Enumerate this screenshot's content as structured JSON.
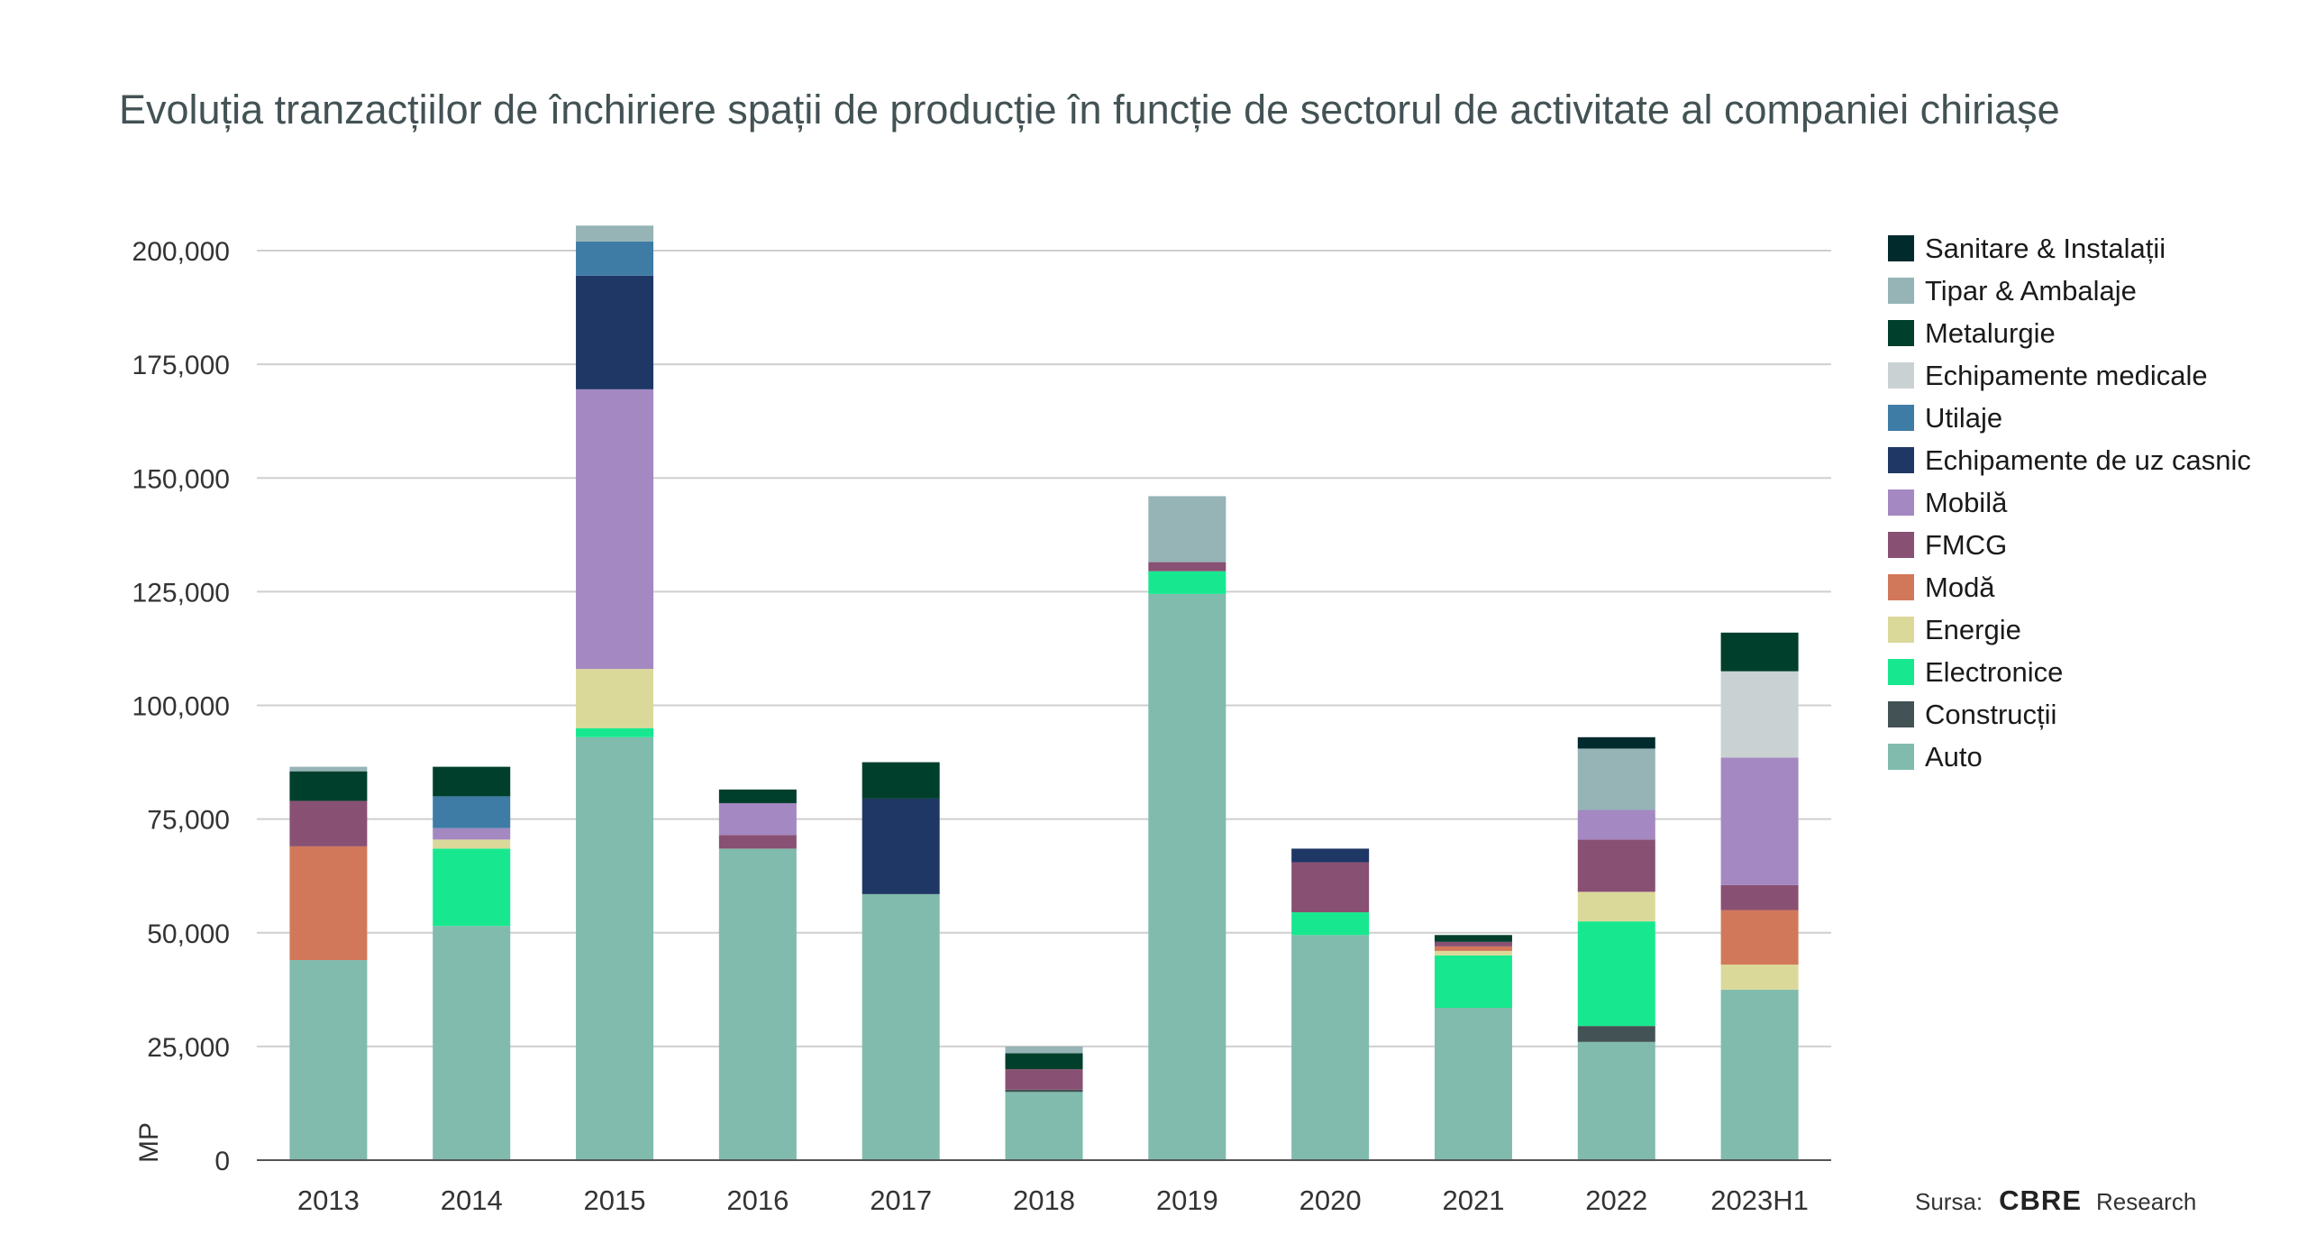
{
  "chart_data": {
    "type": "bar",
    "stacked": true,
    "title": "Evoluția tranzacțiilor de închiriere spații de producție în funcție de sectorul de activitate al companiei chiriașe",
    "ylabel": "MP",
    "xlabel": "",
    "ylim": [
      0,
      205000
    ],
    "yticks": [
      0,
      25000,
      50000,
      75000,
      100000,
      125000,
      150000,
      175000,
      200000
    ],
    "ytick_labels": [
      "0",
      "25,000",
      "50,000",
      "75,000",
      "100,000",
      "125,000",
      "150,000",
      "175,000",
      "200,000"
    ],
    "grid": true,
    "legend_position": "right",
    "categories": [
      "2013",
      "2014",
      "2015",
      "2016",
      "2017",
      "2018",
      "2019",
      "2020",
      "2021",
      "2022",
      "2023H1"
    ],
    "series": [
      {
        "name": "Auto",
        "color": "#80BBAD",
        "values": [
          44000,
          51500,
          93000,
          68500,
          58500,
          15000,
          124500,
          49500,
          33500,
          26000,
          37500
        ]
      },
      {
        "name": "Construcții",
        "color": "#435254",
        "values": [
          0,
          0,
          0,
          0,
          0,
          500,
          0,
          0,
          0,
          3500,
          0
        ]
      },
      {
        "name": "Electronice",
        "color": "#17E88F",
        "values": [
          0,
          17000,
          2000,
          0,
          0,
          0,
          5000,
          5000,
          11500,
          23000,
          0
        ]
      },
      {
        "name": "Energie",
        "color": "#DBD99A",
        "values": [
          0,
          2000,
          13000,
          0,
          0,
          0,
          0,
          0,
          1000,
          6500,
          5500
        ]
      },
      {
        "name": "Modă",
        "color": "#D2785A",
        "values": [
          25000,
          0,
          0,
          0,
          0,
          0,
          0,
          0,
          1000,
          0,
          12000
        ]
      },
      {
        "name": "FMCG",
        "color": "#885073",
        "values": [
          10000,
          0,
          0,
          3000,
          0,
          4500,
          2000,
          11000,
          1000,
          11500,
          5500
        ]
      },
      {
        "name": "Mobilă",
        "color": "#A388C1",
        "values": [
          0,
          2500,
          61500,
          7000,
          0,
          0,
          0,
          0,
          0,
          6500,
          28000
        ]
      },
      {
        "name": "Echipamente de uz casnic",
        "color": "#1F3765",
        "values": [
          0,
          0,
          25000,
          0,
          21000,
          0,
          0,
          3000,
          0,
          0,
          0
        ]
      },
      {
        "name": "Utilaje",
        "color": "#3E7CA6",
        "values": [
          0,
          7000,
          7500,
          0,
          0,
          0,
          0,
          0,
          0,
          0,
          0
        ]
      },
      {
        "name": "Echipamente medicale",
        "color": "#CAD1D3",
        "values": [
          0,
          0,
          0,
          0,
          0,
          0,
          0,
          0,
          0,
          0,
          19000
        ]
      },
      {
        "name": "Metalurgie",
        "color": "#003F2C",
        "values": [
          6500,
          6500,
          0,
          3000,
          8000,
          3500,
          0,
          0,
          1500,
          0,
          8500
        ]
      },
      {
        "name": "Tipar & Ambalaje",
        "color": "#96B3B6",
        "values": [
          1000,
          0,
          3500,
          0,
          0,
          1500,
          14500,
          0,
          0,
          13500,
          0
        ]
      },
      {
        "name": "Sanitare & Instalații",
        "color": "#012A2D",
        "values": [
          0,
          0,
          0,
          0,
          0,
          0,
          0,
          0,
          0,
          2500,
          0
        ]
      }
    ]
  },
  "source": {
    "label": "Sursa:",
    "brand": "CBRE",
    "suffix": "Research"
  }
}
